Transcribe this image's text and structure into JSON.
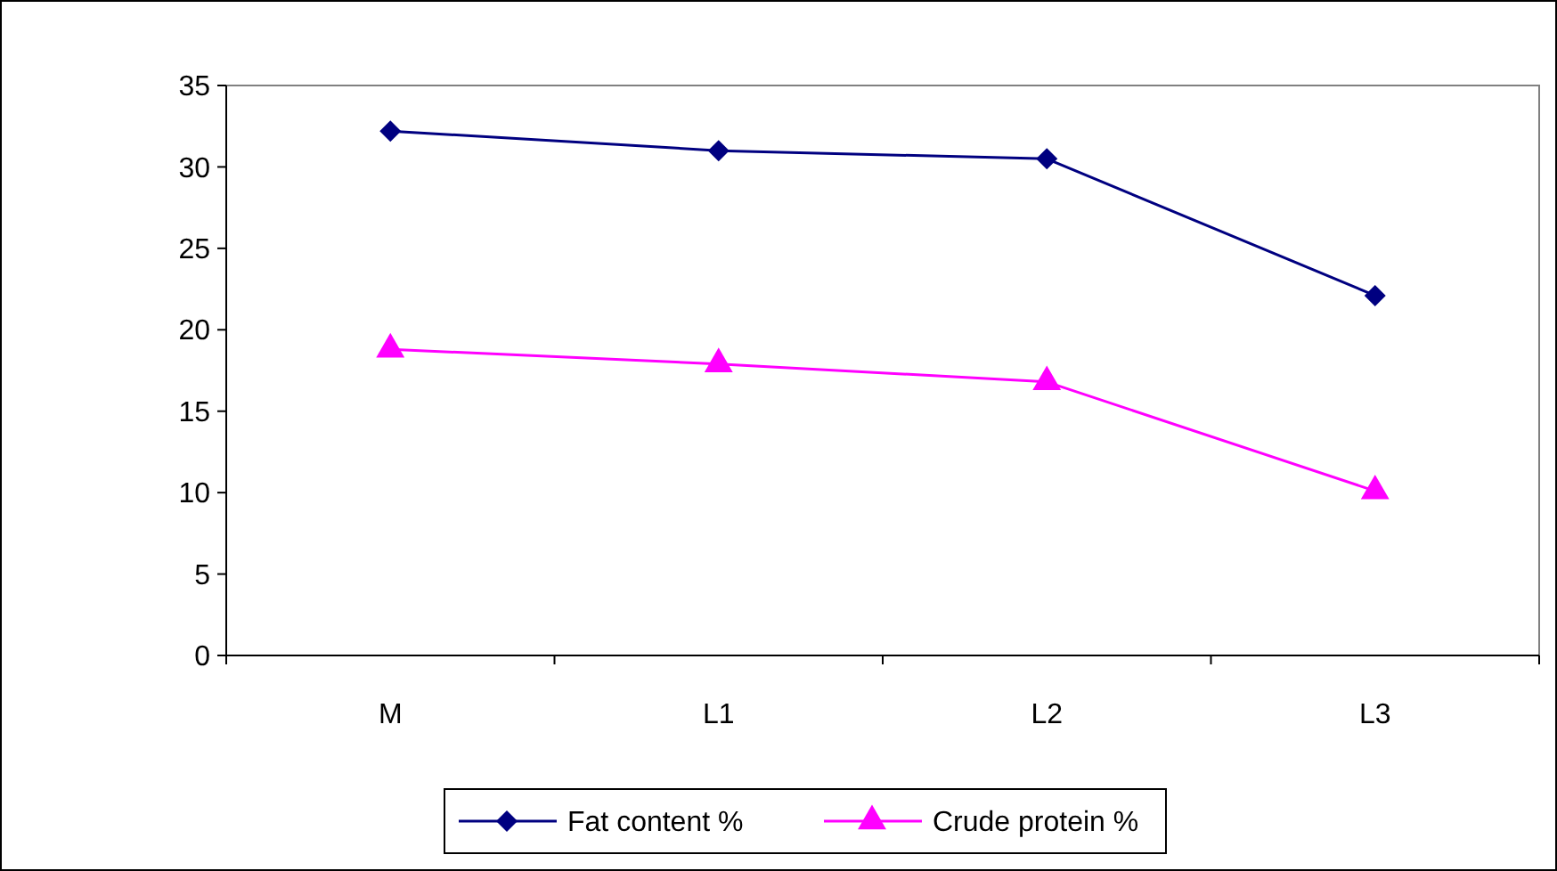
{
  "chart_data": {
    "type": "line",
    "categories": [
      "M",
      "L1",
      "L2",
      "L3"
    ],
    "series": [
      {
        "name": "Fat content %",
        "color": "#000080",
        "marker": "diamond",
        "values": [
          32.2,
          31,
          30.5,
          22.1
        ]
      },
      {
        "name": "Crude protein %",
        "color": "#ff00ff",
        "marker": "triangle",
        "values": [
          18.8,
          17.9,
          16.8,
          10.1
        ]
      }
    ],
    "ylim": [
      0,
      35
    ],
    "yticks": [
      0,
      5,
      10,
      15,
      20,
      25,
      30,
      35
    ],
    "grid": false,
    "legend": "bottom"
  }
}
